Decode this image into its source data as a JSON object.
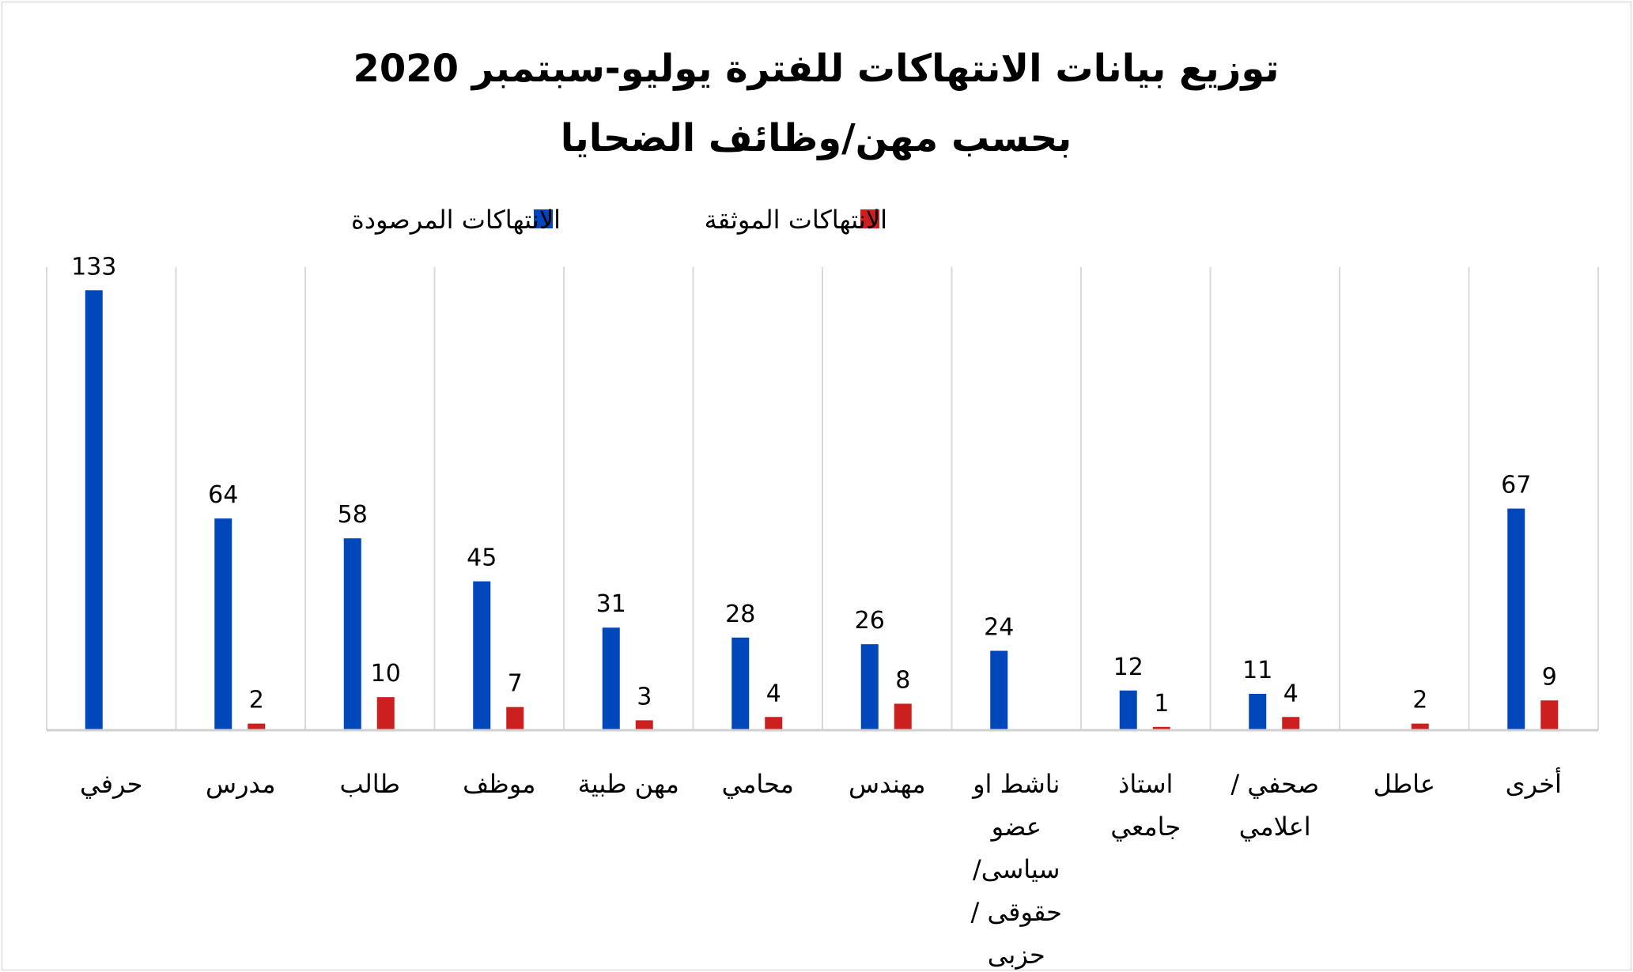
{
  "chart_data": {
    "type": "bar",
    "title": "توزيع بيانات الانتهاكات للفترة يوليو-سبتمبر 2020",
    "subtitle": "بحسب مهن/وظائف الضحايا",
    "xlabel": "",
    "ylabel": "",
    "direction": "rtl",
    "legend_position": "top",
    "grid": "vertical category separators",
    "ylim": [
      0,
      140
    ],
    "categories": [
      [
        "حرفي"
      ],
      [
        "مدرس"
      ],
      [
        "طالب"
      ],
      [
        "موظف"
      ],
      [
        "مهن طبية"
      ],
      [
        "محامي"
      ],
      [
        "مهندس"
      ],
      [
        "ناشط او",
        "عضو",
        "سياسى/",
        "حقوقى /",
        "حزبى"
      ],
      [
        "استاذ",
        "جامعي"
      ],
      [
        "صحفي /",
        "اعلامي"
      ],
      [
        "عاطل"
      ],
      [
        "أخرى"
      ]
    ],
    "series": [
      {
        "name": "الانتهاكات المرصودة",
        "color": "#0047BB",
        "values": [
          133,
          64,
          58,
          45,
          31,
          28,
          26,
          24,
          12,
          11,
          null,
          67
        ]
      },
      {
        "name": "الانتهاكات الموثقة",
        "color": "#CC1F1F",
        "values": [
          null,
          2,
          10,
          7,
          3,
          4,
          8,
          null,
          1,
          4,
          2,
          9
        ]
      }
    ]
  }
}
